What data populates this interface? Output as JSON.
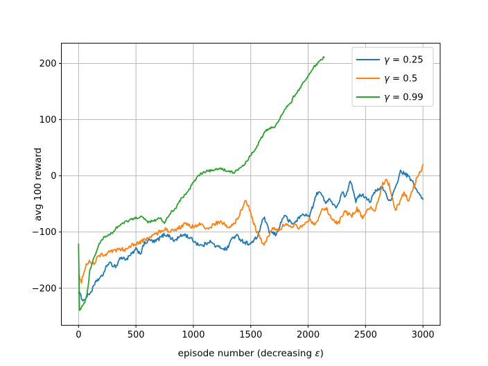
{
  "chart_data": {
    "type": "line",
    "title": "",
    "xlabel": "episode number (decreasing ε)",
    "ylabel": "avg 100 reward",
    "xlim": [
      -150,
      3150
    ],
    "ylim": [
      -266,
      236
    ],
    "xticks": [
      0,
      500,
      1000,
      1500,
      2000,
      2500,
      3000
    ],
    "xtick_labels": [
      "0",
      "500",
      "1000",
      "1500",
      "2000",
      "2500",
      "3000"
    ],
    "yticks": [
      -200,
      -100,
      0,
      100,
      200
    ],
    "ytick_labels": [
      "−200",
      "−100",
      "0",
      "100",
      "200"
    ],
    "grid": true,
    "grid_color": "#b0b0b0",
    "legend_position": "upper right",
    "series": [
      {
        "name": "γ = 0.25",
        "color": "#1f77b4",
        "points": [
          [
            0,
            -205
          ],
          [
            20,
            -215
          ],
          [
            45,
            -222
          ],
          [
            80,
            -213
          ],
          [
            110,
            -206
          ],
          [
            160,
            -186
          ],
          [
            200,
            -180
          ],
          [
            260,
            -155
          ],
          [
            300,
            -159
          ],
          [
            330,
            -161
          ],
          [
            360,
            -146
          ],
          [
            420,
            -148
          ],
          [
            460,
            -140
          ],
          [
            500,
            -131
          ],
          [
            540,
            -138
          ],
          [
            575,
            -120
          ],
          [
            620,
            -114
          ],
          [
            660,
            -118
          ],
          [
            700,
            -112
          ],
          [
            750,
            -104
          ],
          [
            790,
            -107
          ],
          [
            830,
            -116
          ],
          [
            870,
            -110
          ],
          [
            920,
            -104
          ],
          [
            980,
            -112
          ],
          [
            1030,
            -120
          ],
          [
            1080,
            -125
          ],
          [
            1140,
            -116
          ],
          [
            1200,
            -126
          ],
          [
            1250,
            -128
          ],
          [
            1290,
            -131
          ],
          [
            1340,
            -110
          ],
          [
            1380,
            -107
          ],
          [
            1440,
            -118
          ],
          [
            1500,
            -121
          ],
          [
            1560,
            -108
          ],
          [
            1613,
            -73
          ],
          [
            1660,
            -99
          ],
          [
            1722,
            -105
          ],
          [
            1760,
            -85
          ],
          [
            1794,
            -69
          ],
          [
            1830,
            -80
          ],
          [
            1870,
            -86
          ],
          [
            1910,
            -77
          ],
          [
            1945,
            -70
          ],
          [
            1975,
            -68
          ],
          [
            2005,
            -74
          ],
          [
            2040,
            -55
          ],
          [
            2076,
            -31
          ],
          [
            2105,
            -27
          ],
          [
            2145,
            -47
          ],
          [
            2185,
            -41
          ],
          [
            2235,
            -56
          ],
          [
            2270,
            -48
          ],
          [
            2295,
            -30
          ],
          [
            2330,
            -38
          ],
          [
            2366,
            -6
          ],
          [
            2400,
            -30
          ],
          [
            2416,
            -45
          ],
          [
            2456,
            -33
          ],
          [
            2507,
            -38
          ],
          [
            2540,
            -46
          ],
          [
            2580,
            -29
          ],
          [
            2647,
            -20
          ],
          [
            2680,
            -33
          ],
          [
            2715,
            -47
          ],
          [
            2760,
            -22
          ],
          [
            2805,
            8
          ],
          [
            2845,
            3
          ],
          [
            2877,
            -2
          ],
          [
            2925,
            -16
          ],
          [
            2960,
            -31
          ],
          [
            3000,
            -42
          ]
        ]
      },
      {
        "name": "γ = 0.5",
        "color": "#ff7f0e",
        "points": [
          [
            0,
            -175
          ],
          [
            25,
            -188
          ],
          [
            60,
            -161
          ],
          [
            100,
            -152
          ],
          [
            135,
            -156
          ],
          [
            180,
            -141
          ],
          [
            240,
            -139
          ],
          [
            300,
            -134
          ],
          [
            360,
            -131
          ],
          [
            410,
            -131
          ],
          [
            440,
            -125
          ],
          [
            500,
            -122
          ],
          [
            560,
            -116
          ],
          [
            610,
            -110
          ],
          [
            660,
            -105
          ],
          [
            700,
            -100
          ],
          [
            750,
            -94
          ],
          [
            800,
            -99
          ],
          [
            850,
            -96
          ],
          [
            920,
            -86
          ],
          [
            1000,
            -91
          ],
          [
            1060,
            -86
          ],
          [
            1120,
            -95
          ],
          [
            1180,
            -86
          ],
          [
            1240,
            -82
          ],
          [
            1300,
            -91
          ],
          [
            1350,
            -86
          ],
          [
            1395,
            -75
          ],
          [
            1425,
            -58
          ],
          [
            1451,
            -45
          ],
          [
            1475,
            -52
          ],
          [
            1505,
            -70
          ],
          [
            1545,
            -96
          ],
          [
            1583,
            -112
          ],
          [
            1615,
            -123
          ],
          [
            1650,
            -110
          ],
          [
            1690,
            -91
          ],
          [
            1740,
            -96
          ],
          [
            1800,
            -86
          ],
          [
            1850,
            -93
          ],
          [
            1885,
            -86
          ],
          [
            1915,
            -92
          ],
          [
            1960,
            -86
          ],
          [
            2005,
            -78
          ],
          [
            2065,
            -86
          ],
          [
            2115,
            -63
          ],
          [
            2157,
            -57
          ],
          [
            2205,
            -78
          ],
          [
            2265,
            -84
          ],
          [
            2315,
            -63
          ],
          [
            2375,
            -72
          ],
          [
            2425,
            -59
          ],
          [
            2475,
            -74
          ],
          [
            2537,
            -57
          ],
          [
            2580,
            -63
          ],
          [
            2615,
            -40
          ],
          [
            2650,
            -15
          ],
          [
            2680,
            -8
          ],
          [
            2705,
            -16
          ],
          [
            2735,
            -40
          ],
          [
            2760,
            -61
          ],
          [
            2800,
            -46
          ],
          [
            2835,
            -30
          ],
          [
            2877,
            -44
          ],
          [
            2912,
            -24
          ],
          [
            2950,
            -2
          ],
          [
            2980,
            8
          ],
          [
            3000,
            20
          ]
        ]
      },
      {
        "name": "γ = 0.99",
        "color": "#2ca02c",
        "points": [
          [
            0,
            -120
          ],
          [
            8,
            -241
          ],
          [
            30,
            -231
          ],
          [
            55,
            -224
          ],
          [
            78,
            -205
          ],
          [
            98,
            -168
          ],
          [
            138,
            -144
          ],
          [
            180,
            -121
          ],
          [
            220,
            -110
          ],
          [
            260,
            -106
          ],
          [
            300,
            -100
          ],
          [
            330,
            -92
          ],
          [
            410,
            -82
          ],
          [
            460,
            -78
          ],
          [
            500,
            -75
          ],
          [
            550,
            -73
          ],
          [
            605,
            -82
          ],
          [
            655,
            -80
          ],
          [
            710,
            -74
          ],
          [
            748,
            -84
          ],
          [
            800,
            -66
          ],
          [
            850,
            -56
          ],
          [
            900,
            -39
          ],
          [
            950,
            -30
          ],
          [
            1000,
            -11
          ],
          [
            1055,
            2
          ],
          [
            1110,
            8
          ],
          [
            1180,
            10
          ],
          [
            1245,
            13
          ],
          [
            1300,
            8
          ],
          [
            1355,
            6
          ],
          [
            1430,
            17
          ],
          [
            1470,
            27
          ],
          [
            1505,
            39
          ],
          [
            1540,
            48
          ],
          [
            1570,
            59
          ],
          [
            1600,
            70
          ],
          [
            1630,
            80
          ],
          [
            1665,
            85
          ],
          [
            1714,
            87
          ],
          [
            1745,
            100
          ],
          [
            1775,
            110
          ],
          [
            1805,
            120
          ],
          [
            1824,
            126
          ],
          [
            1850,
            129
          ],
          [
            1872,
            141
          ],
          [
            1905,
            148
          ],
          [
            1940,
            160
          ],
          [
            1975,
            170
          ],
          [
            2005,
            179
          ],
          [
            2040,
            191
          ],
          [
            2075,
            199
          ],
          [
            2110,
            206
          ],
          [
            2140,
            211
          ]
        ]
      }
    ]
  }
}
